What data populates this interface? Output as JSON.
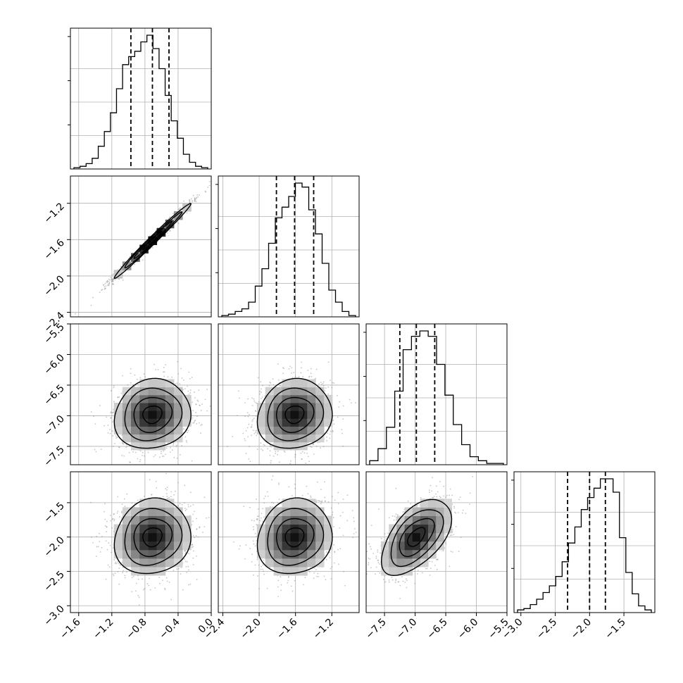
{
  "chart_data": {
    "type": "corner",
    "n_params": 4,
    "parameters": [
      {
        "index": 0,
        "median": -0.71,
        "q16": -0.97,
        "q84": -0.51,
        "range": [
          -1.7,
          0.0
        ],
        "ticks": [
          -1.6,
          -1.2,
          -0.8,
          -0.4,
          0.0
        ],
        "tick_labels": [
          "−1.6",
          "−1.2",
          "−0.8",
          "−0.4",
          "0.0"
        ],
        "hist_bins": [
          0.01,
          0.02,
          0.04,
          0.08,
          0.17,
          0.28,
          0.42,
          0.6,
          0.78,
          0.84,
          0.88,
          0.95,
          1.0,
          0.9,
          0.75,
          0.55,
          0.36,
          0.23,
          0.11,
          0.05,
          0.02,
          0.01
        ]
      },
      {
        "index": 1,
        "median": -1.61,
        "q16": -1.81,
        "q84": -1.4,
        "range": [
          -2.45,
          -0.9
        ],
        "ticks": [
          -2.4,
          -2.0,
          -1.6,
          -1.2
        ],
        "tick_labels": [
          "−2.4",
          "−2.0",
          "−1.6",
          "−1.2"
        ],
        "hist_bins": [
          0.01,
          0.02,
          0.04,
          0.06,
          0.11,
          0.23,
          0.36,
          0.55,
          0.74,
          0.82,
          0.9,
          1.0,
          0.97,
          0.8,
          0.62,
          0.4,
          0.2,
          0.11,
          0.04,
          0.01
        ]
      },
      {
        "index": 2,
        "median": -6.98,
        "q16": -7.25,
        "q84": -6.68,
        "range": [
          -7.8,
          -5.5
        ],
        "ticks": [
          -7.5,
          -7.0,
          -6.5,
          -6.0,
          -5.5
        ],
        "tick_labels": [
          "−7.5",
          "−7.0",
          "−6.5",
          "−6.0",
          "−5.5"
        ],
        "hist_bins": [
          0.03,
          0.12,
          0.28,
          0.55,
          0.86,
          0.96,
          1.0,
          0.96,
          0.75,
          0.52,
          0.3,
          0.15,
          0.06,
          0.03,
          0.01,
          0.01
        ]
      },
      {
        "index": 3,
        "median": -2.0,
        "q16": -2.32,
        "q84": -1.77,
        "range": [
          -3.1,
          -1.05
        ],
        "ticks": [
          -3.0,
          -2.5,
          -2.0,
          -1.5
        ],
        "tick_labels": [
          "−3.0",
          "−2.5",
          "−2.0",
          "−1.5"
        ],
        "hist_bins": [
          0.02,
          0.03,
          0.06,
          0.1,
          0.15,
          0.2,
          0.27,
          0.38,
          0.52,
          0.64,
          0.77,
          0.86,
          0.93,
          1.0,
          1.0,
          0.9,
          0.56,
          0.3,
          0.14,
          0.05,
          0.02
        ]
      }
    ],
    "pairs": [
      {
        "row": 1,
        "col": 0,
        "correlation": 0.99
      },
      {
        "row": 2,
        "col": 0,
        "correlation": 0.1
      },
      {
        "row": 2,
        "col": 1,
        "correlation": 0.1
      },
      {
        "row": 3,
        "col": 0,
        "correlation": 0.1
      },
      {
        "row": 3,
        "col": 1,
        "correlation": 0.1
      },
      {
        "row": 3,
        "col": 2,
        "correlation": 0.55
      }
    ],
    "contour_levels_sigma": [
      0.5,
      1.0,
      1.5,
      2.0
    ],
    "quantile_lines": [
      0.16,
      0.5,
      0.84
    ],
    "grid": true,
    "colors": {
      "points": "#7f7f7f",
      "lines": "#000000",
      "grid": "#b0b0b0",
      "density_light": "#f2f2f2",
      "density_dark": "#151515"
    }
  }
}
